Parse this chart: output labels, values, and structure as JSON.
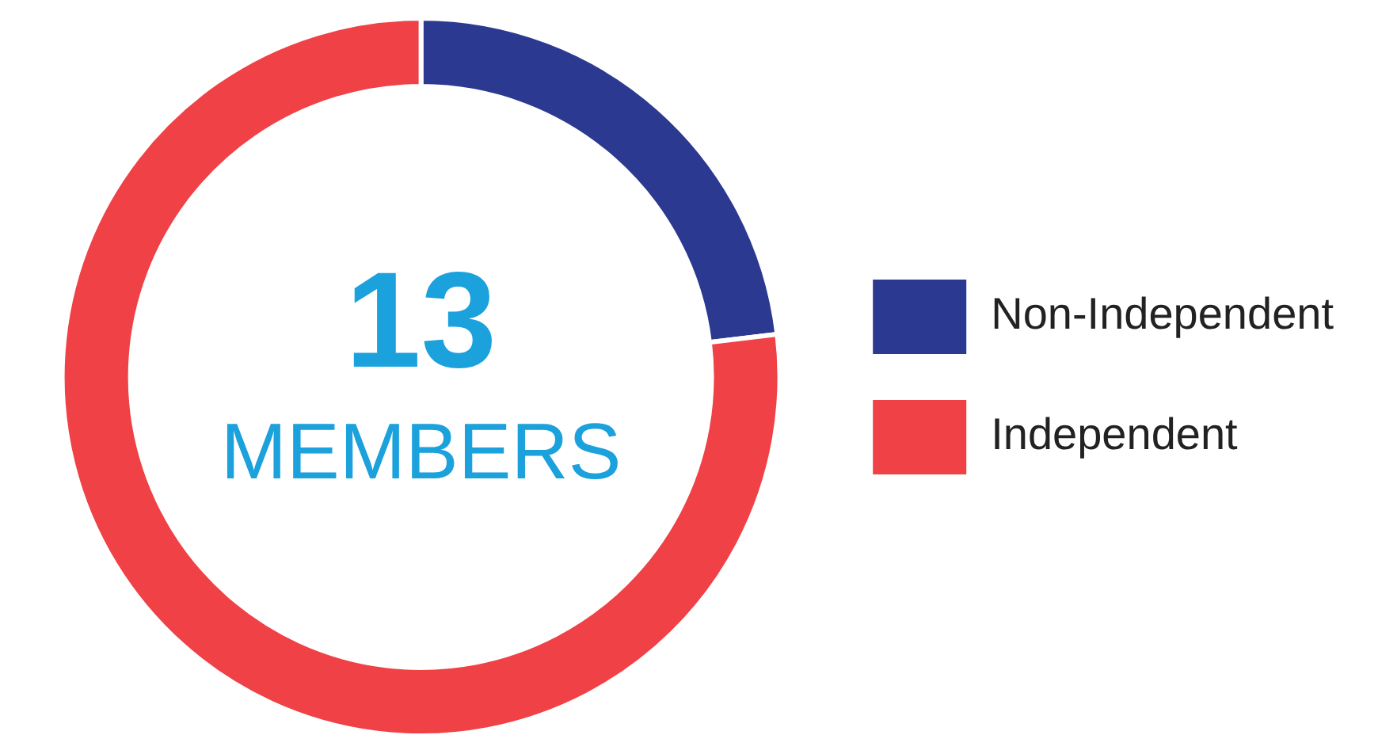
{
  "chart_data": {
    "type": "donut",
    "categories": [
      "Non-Independent",
      "Independent"
    ],
    "values": [
      23.1,
      76.9
    ],
    "colors": [
      "#2b3990",
      "#ef4146"
    ],
    "annotations": [
      "13",
      "MEMBERS"
    ],
    "legend": "right"
  }
}
